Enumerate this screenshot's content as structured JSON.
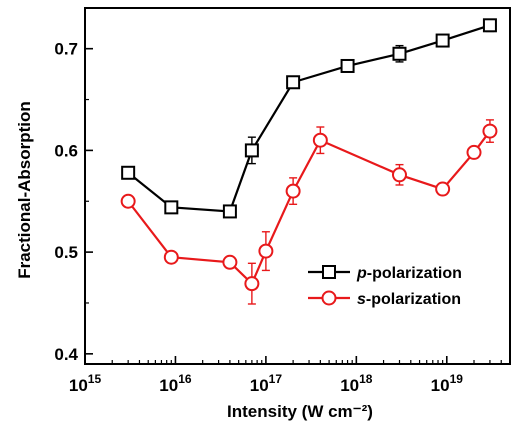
{
  "chart_data": {
    "type": "line",
    "xlabel": "Intensity (W cm⁻²)",
    "ylabel": "Fractional-Absorption",
    "x_scale": "log",
    "xlim": [
      1000000000000000.0,
      5e+19
    ],
    "ylim": [
      0.39,
      0.74
    ],
    "x_ticks": [
      {
        "value": 1000000000000000.0,
        "base": "10",
        "exp": "15"
      },
      {
        "value": 1e+16,
        "base": "10",
        "exp": "16"
      },
      {
        "value": 1e+17,
        "base": "10",
        "exp": "17"
      },
      {
        "value": 1e+18,
        "base": "10",
        "exp": "18"
      },
      {
        "value": 1e+19,
        "base": "10",
        "exp": "19"
      }
    ],
    "y_ticks": [
      {
        "value": 0.4,
        "label": "0.4"
      },
      {
        "value": 0.5,
        "label": "0.5"
      },
      {
        "value": 0.6,
        "label": "0.6"
      },
      {
        "value": 0.7,
        "label": "0.7"
      }
    ],
    "legend_position": "center-right",
    "series": [
      {
        "name": "p-polarization",
        "name_italic": "p",
        "name_rest": "-polarization",
        "color": "#000000",
        "marker": "square",
        "x": [
          3000000000000000.0,
          9000000000000000.0,
          4e+16,
          7e+16,
          2e+17,
          8e+17,
          3e+18,
          9e+18,
          3e+19
        ],
        "y": [
          0.578,
          0.544,
          0.54,
          0.6,
          0.667,
          0.683,
          0.695,
          0.708,
          0.723
        ],
        "err": [
          0.004,
          0.004,
          0.004,
          0.013,
          0.005,
          0.004,
          0.008,
          0.004,
          0.006
        ]
      },
      {
        "name": "s-polarization",
        "name_italic": "s",
        "name_rest": "-polarization",
        "color": "#e8191b",
        "marker": "circle",
        "x": [
          3000000000000000.0,
          9000000000000000.0,
          4e+16,
          7e+16,
          1e+17,
          2e+17,
          4e+17,
          3e+18,
          9e+18,
          2e+19,
          3e+19
        ],
        "y": [
          0.55,
          0.495,
          0.49,
          0.469,
          0.501,
          0.56,
          0.61,
          0.576,
          0.562,
          0.598,
          0.619
        ],
        "err": [
          0.005,
          0.004,
          0.005,
          0.02,
          0.019,
          0.013,
          0.013,
          0.01,
          0.004,
          0.005,
          0.011
        ]
      }
    ]
  }
}
